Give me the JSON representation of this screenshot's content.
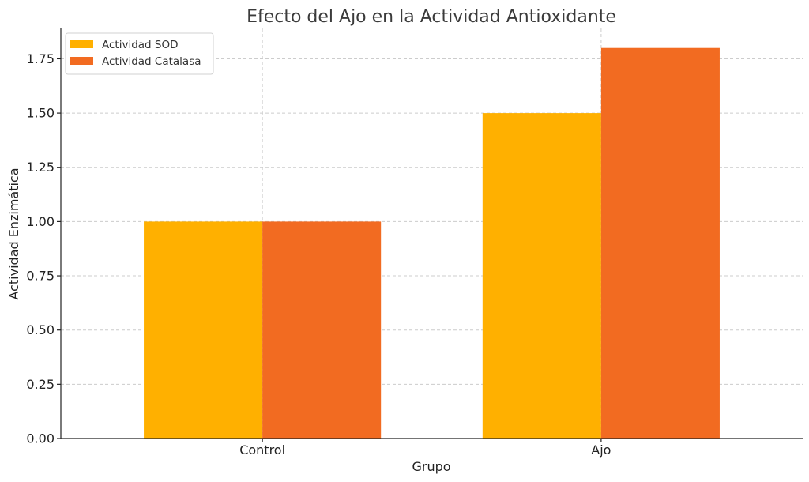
{
  "chart_data": {
    "type": "bar",
    "title": "Efecto del Ajo en la Actividad Antioxidante",
    "xlabel": "Grupo",
    "ylabel": "Actividad Enzimática",
    "categories": [
      "Control",
      "Ajo"
    ],
    "series": [
      {
        "name": "Actividad SOD",
        "values": [
          1.0,
          1.5
        ],
        "color": "#FFB000"
      },
      {
        "name": "Actividad Catalasa",
        "values": [
          1.0,
          1.8
        ],
        "color": "#F26B21"
      }
    ],
    "ylim": [
      0,
      1.89
    ],
    "yticks": [
      "0.00",
      "0.25",
      "0.50",
      "0.75",
      "1.00",
      "1.25",
      "1.50",
      "1.75"
    ],
    "grid": true,
    "legend_position": "top-left"
  }
}
